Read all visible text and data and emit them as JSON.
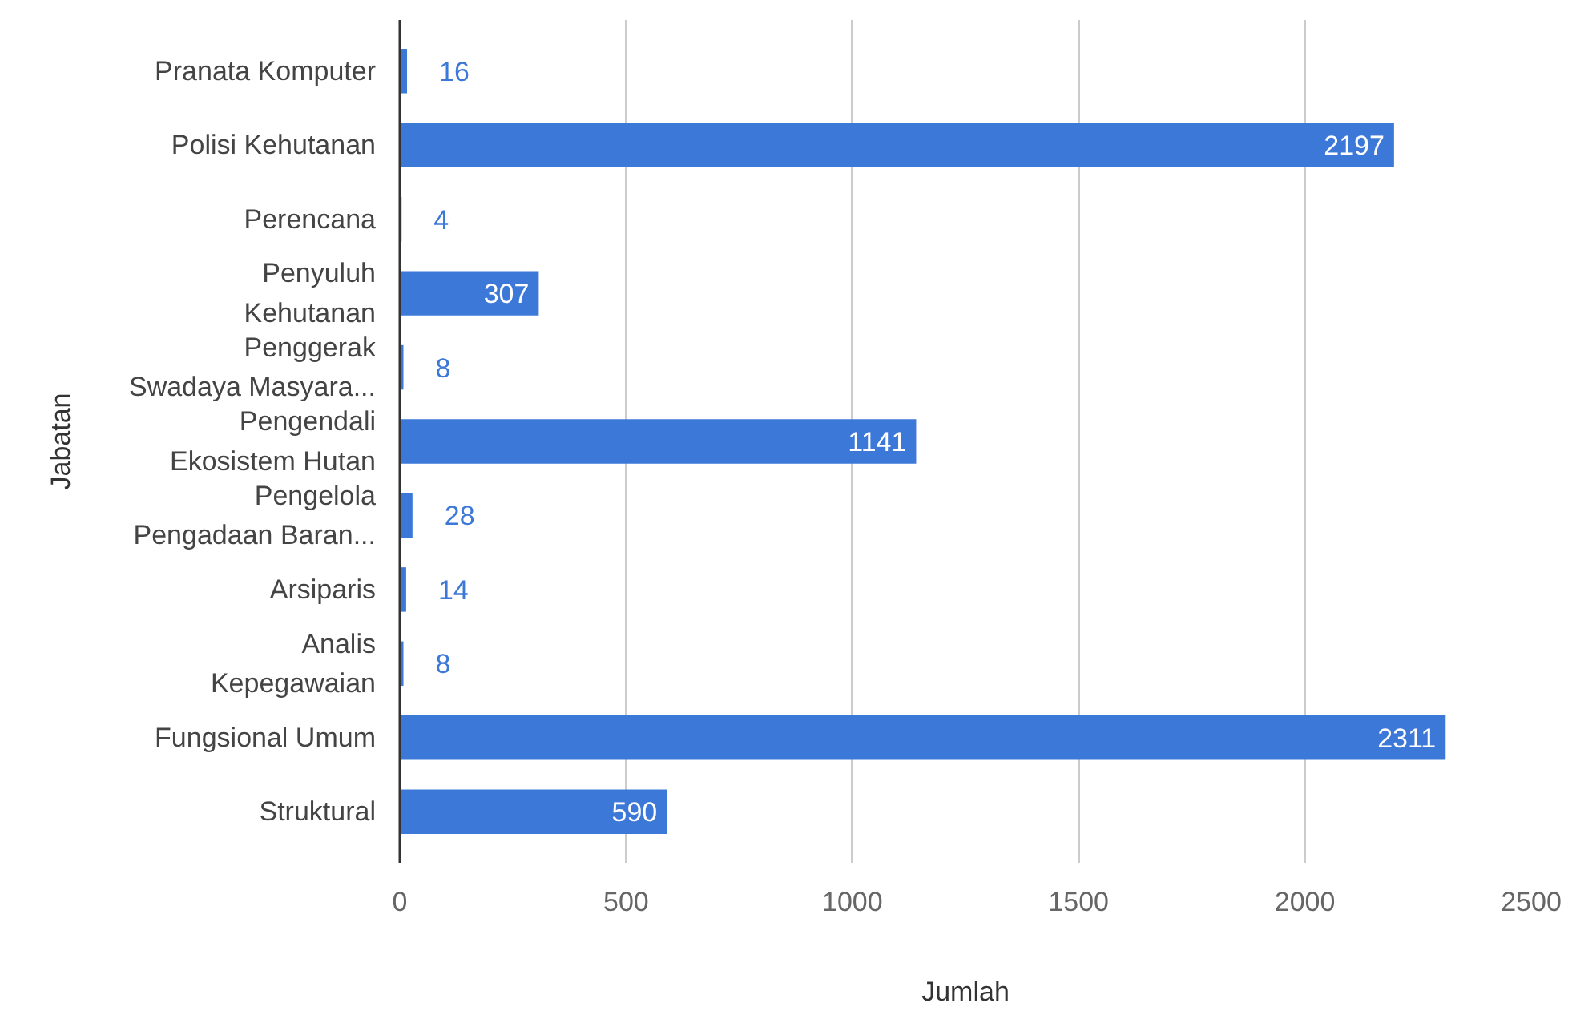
{
  "chart_data": {
    "type": "bar",
    "orientation": "horizontal",
    "xlabel": "Jumlah",
    "ylabel": "Jabatan",
    "categories": [
      "Pranata Komputer",
      "Polisi Kehutanan",
      "Perencana",
      "Penyuluh Kehutanan",
      "Penggerak Swadaya Masyara...",
      "Pengendali Ekosistem Hutan",
      "Pengelola Pengadaan Baran...",
      "Arsiparis",
      "Analis Kepegawaian",
      "Fungsional Umum",
      "Struktural"
    ],
    "values": [
      16,
      2197,
      4,
      307,
      8,
      1141,
      28,
      14,
      8,
      2311,
      590
    ],
    "color": "#3c78d8",
    "xlim": [
      0,
      2500
    ],
    "xticks": [
      0,
      500,
      1000,
      1500,
      2000,
      2500
    ],
    "grid": "x",
    "data_labels": true
  }
}
